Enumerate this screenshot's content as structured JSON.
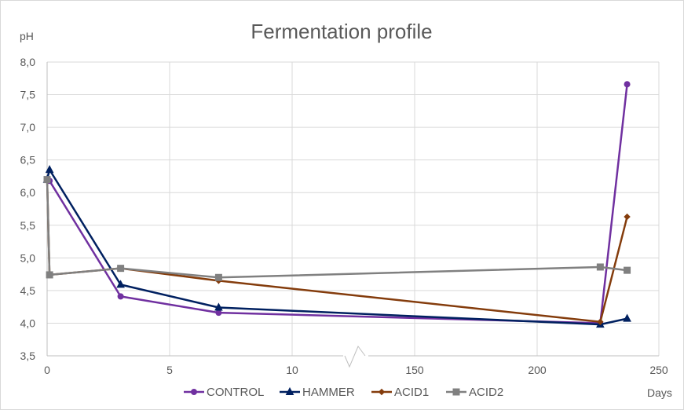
{
  "chart_data": {
    "type": "line",
    "title": "Fermentation profile",
    "xlabel": "Days",
    "ylabel": "pH",
    "ylim": [
      3.5,
      8.0
    ],
    "y_ticks": [
      "3,5",
      "4,0",
      "4,5",
      "5,0",
      "5,5",
      "6,0",
      "6,5",
      "7,0",
      "7,5",
      "8,0"
    ],
    "x_ticks": [
      "0",
      "5",
      "10",
      "150",
      "200",
      "250"
    ],
    "x_axis_break": "between 10 and 150",
    "grid": "both",
    "legend_position": "bottom",
    "series": [
      {
        "name": "CONTROL",
        "color": "#7030a0",
        "marker": "circle",
        "x": [
          0,
          0.1,
          3,
          7,
          226,
          237
        ],
        "y": [
          6.2,
          6.18,
          4.41,
          4.16,
          4.0,
          7.66
        ]
      },
      {
        "name": "HAMMER",
        "color": "#002060",
        "marker": "triangle",
        "x": [
          0,
          0.1,
          3,
          7,
          226,
          237
        ],
        "y": [
          6.2,
          6.35,
          4.59,
          4.24,
          3.98,
          4.07
        ]
      },
      {
        "name": "ACID1",
        "color": "#843c0c",
        "marker": "diamond",
        "x": [
          0,
          0.1,
          3,
          7,
          226,
          237
        ],
        "y": [
          6.2,
          4.74,
          4.84,
          4.65,
          4.02,
          5.63
        ]
      },
      {
        "name": "ACID2",
        "color": "#808080",
        "marker": "square",
        "x": [
          0,
          0.1,
          3,
          7,
          226,
          237
        ],
        "y": [
          6.2,
          4.74,
          4.84,
          4.7,
          4.86,
          4.81
        ]
      }
    ]
  }
}
